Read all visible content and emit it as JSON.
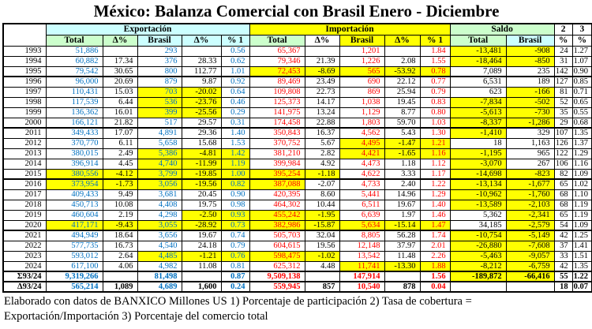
{
  "title": "México: Balanza Comercial con Brasil Enero - Diciembre",
  "colors": {
    "export_text": "#0070C0",
    "import_text": "#FF0000",
    "saldo_text": "#000000",
    "highlight": "#FFFF00",
    "header_export_bg": "#CCFFFF",
    "header_import_bg": "#FFFF00",
    "header_saldo_bg": "#CCFFCC"
  },
  "table": {
    "corner_label": "",
    "groups": [
      {
        "label": "Exportación",
        "span": 5,
        "bg": "cyan"
      },
      {
        "label": "Importación",
        "span": 5,
        "bg": "yellow"
      },
      {
        "label": "Saldo",
        "span": 2,
        "bg": "green"
      },
      {
        "label": "2",
        "span": 1,
        "bg": "white"
      },
      {
        "label": "3",
        "span": 1,
        "bg": "white"
      }
    ],
    "columns": [
      {
        "label": "Total",
        "bg": "green"
      },
      {
        "label": "Δ%",
        "bg": "green"
      },
      {
        "label": "Brasil",
        "bg": "cyan"
      },
      {
        "label": "Δ%",
        "bg": "cyan"
      },
      {
        "label": "% 1",
        "bg": "cyan"
      },
      {
        "label": "Total",
        "bg": "green"
      },
      {
        "label": "Δ%",
        "bg": "white"
      },
      {
        "label": "Brasil",
        "bg": "yellow"
      },
      {
        "label": "Δ%",
        "bg": "yellow"
      },
      {
        "label": "% 1",
        "bg": "yellow"
      },
      {
        "label": "Total",
        "bg": "green"
      },
      {
        "label": "Brasil",
        "bg": "cyan"
      },
      {
        "label": "%",
        "bg": "white"
      },
      {
        "label": "%",
        "bg": "white"
      }
    ],
    "rows": [
      {
        "year": "1993",
        "cells": [
          "51,886",
          "",
          "293",
          "",
          "0.56",
          "65,367",
          "",
          "1,201",
          "",
          "1.84",
          "-13,481",
          "-908",
          "24",
          "1.27"
        ],
        "hl": [
          10,
          11
        ]
      },
      {
        "year": "1994",
        "cells": [
          "60,882",
          "17.34",
          "376",
          "28.33",
          "0.62",
          "79,346",
          "21.39",
          "1,226",
          "2.08",
          "1.55",
          "-18,464",
          "-850",
          "31",
          "1.07"
        ],
        "hl": [
          10,
          11
        ]
      },
      {
        "year": "1995",
        "cells": [
          "79,542",
          "30.65",
          "800",
          "112.77",
          "1.01",
          "72,453",
          "-8.69",
          "565",
          "-53.92",
          "0.78",
          "7,089",
          "235",
          "142",
          "0.90"
        ],
        "hl": [
          5,
          6,
          7,
          8,
          9
        ]
      },
      {
        "year": "1996",
        "cells": [
          "96,000",
          "20.69",
          "879",
          "9.87",
          "0.92",
          "89,469",
          "23.49",
          "690",
          "22.12",
          "0.77",
          "6,531",
          "189",
          "127",
          "0.85"
        ],
        "hl": [],
        "sep": true
      },
      {
        "year": "1997",
        "cells": [
          "110,431",
          "15.03",
          "703",
          "-20.02",
          "0.64",
          "109,808",
          "22.73",
          "869",
          "25.94",
          "0.79",
          "623",
          "-166",
          "81",
          "0.71"
        ],
        "hl": [
          2,
          3,
          11
        ]
      },
      {
        "year": "1998",
        "cells": [
          "117,539",
          "6.44",
          "536",
          "-23.76",
          "0.46",
          "125,373",
          "14.17",
          "1,038",
          "19.45",
          "0.83",
          "-7,834",
          "-502",
          "52",
          "0.65"
        ],
        "hl": [
          2,
          3,
          10,
          11
        ]
      },
      {
        "year": "1999",
        "cells": [
          "136,362",
          "16.01",
          "399",
          "-25.56",
          "0.29",
          "141,975",
          "13.24",
          "1,129",
          "8.77",
          "0.80",
          "-5,613",
          "-730",
          "35",
          "0.55"
        ],
        "hl": [
          2,
          3,
          10,
          11
        ]
      },
      {
        "year": "2000",
        "cells": [
          "166,121",
          "21.82",
          "517",
          "29.57",
          "0.31",
          "174,458",
          "22.88",
          "1,803",
          "59.70",
          "1.03",
          "-8,337",
          "-1,286",
          "29",
          "0.68"
        ],
        "hl": [
          10,
          11
        ]
      },
      {
        "year": "2011",
        "cells": [
          "349,433",
          "17.07",
          "4,891",
          "29.36",
          "1.40",
          "350,843",
          "16.37",
          "4,562",
          "5.43",
          "1.30",
          "-1,410",
          "329",
          "107",
          "1.35"
        ],
        "hl": [
          10
        ],
        "sep": true
      },
      {
        "year": "2012",
        "cells": [
          "370,770",
          "6.11",
          "5,658",
          "15.68",
          "1.53",
          "370,752",
          "5.67",
          "4,495",
          "-1.47",
          "1.21",
          "18",
          "1,163",
          "126",
          "1.37"
        ],
        "hl": [
          7,
          8,
          9
        ]
      },
      {
        "year": "2013",
        "cells": [
          "380,015",
          "2.49",
          "5,386",
          "-4.81",
          "1.42",
          "381,210",
          "2.82",
          "4,421",
          "-1.65",
          "1.16",
          "-1,195",
          "965",
          "122",
          "1.29"
        ],
        "hl": [
          2,
          3,
          4,
          7,
          8,
          9,
          10
        ]
      },
      {
        "year": "2014",
        "cells": [
          "396,914",
          "4.45",
          "4,740",
          "-11.99",
          "1.19",
          "399,984",
          "4.92",
          "4,473",
          "1.18",
          "1.12",
          "-3,070",
          "267",
          "106",
          "1.16"
        ],
        "hl": [
          2,
          3,
          4,
          10
        ]
      },
      {
        "year": "2015",
        "cells": [
          "380,556",
          "-4.12",
          "3,799",
          "-19.85",
          "1.00",
          "395,254",
          "-1.18",
          "4,622",
          "3.33",
          "1.17",
          "-14,698",
          "-823",
          "82",
          "1.09"
        ],
        "hl": [
          0,
          1,
          2,
          3,
          4,
          5,
          6,
          10,
          11
        ]
      },
      {
        "year": "2016",
        "cells": [
          "373,954",
          "-1.73",
          "3,056",
          "-19.56",
          "0.82",
          "387,088",
          "-2.07",
          "4,733",
          "2.40",
          "1.22",
          "-13,134",
          "-1,677",
          "65",
          "1.02"
        ],
        "hl": [
          0,
          1,
          2,
          3,
          4,
          5,
          10,
          11
        ],
        "sep": true
      },
      {
        "year": "2017",
        "cells": [
          "409,433",
          "9.49",
          "3,681",
          "20.45",
          "0.90",
          "420,395",
          "8.60",
          "5,441",
          "14.96",
          "1.29",
          "-10,962",
          "-1,760",
          "68",
          "1.10"
        ],
        "hl": [
          10,
          11
        ]
      },
      {
        "year": "2018",
        "cells": [
          "450,713",
          "10.08",
          "4,408",
          "19.75",
          "0.98",
          "464,302",
          "10.44",
          "6,511",
          "19.67",
          "1.40",
          "-13,589",
          "-2,103",
          "68",
          "1.19"
        ],
        "hl": [
          10,
          11
        ]
      },
      {
        "year": "2019",
        "cells": [
          "460,604",
          "2.19",
          "4,298",
          "-2.50",
          "0.93",
          "455,242",
          "-1.95",
          "6,639",
          "1.97",
          "1.46",
          "5,362",
          "-2,341",
          "65",
          "1.19"
        ],
        "hl": [
          3,
          4,
          5,
          6,
          11
        ]
      },
      {
        "year": "2020",
        "cells": [
          "417,171",
          "-9.43",
          "3,055",
          "-28.92",
          "0.73",
          "382,986",
          "-15.87",
          "5,634",
          "-15.14",
          "1.47",
          "34,185",
          "-2,579",
          "54",
          "1.09"
        ],
        "hl": [
          0,
          1,
          2,
          3,
          4,
          5,
          6,
          7,
          8,
          9,
          11
        ]
      },
      {
        "year": "2021",
        "cells": [
          "494,949",
          "18.64",
          "3,656",
          "19.67",
          "0.74",
          "505,703",
          "32.04",
          "8,805",
          "56.28",
          "1.74",
          "-10,754",
          "-5,149",
          "42",
          "1.25"
        ],
        "hl": [
          10,
          11
        ],
        "sep": true
      },
      {
        "year": "2022",
        "cells": [
          "577,735",
          "16.73",
          "4,540",
          "24.18",
          "0.79",
          "604,615",
          "19.56",
          "12,148",
          "37.97",
          "2.01",
          "-26,880",
          "-7,608",
          "37",
          "1.41"
        ],
        "hl": [
          10,
          11
        ]
      },
      {
        "year": "2023",
        "cells": [
          "593,012",
          "2.64",
          "4,485",
          "-1.21",
          "0.76",
          "598,475",
          "-1.02",
          "13,542",
          "11.48",
          "2.26",
          "-5,463",
          "-9,057",
          "33",
          "1.51"
        ],
        "hl": [
          2,
          3,
          4,
          5,
          6,
          10,
          11
        ]
      },
      {
        "year": "2024",
        "cells": [
          "617,100",
          "4.06",
          "4,982",
          "11.08",
          "0.81",
          "625,312",
          "4.48",
          "11,741",
          "-13.30",
          "1.88",
          "-8,212",
          "-6,759",
          "42",
          "1.35"
        ],
        "hl": [
          7,
          8,
          9,
          10,
          11
        ]
      },
      {
        "year": "Σ93/24",
        "cells": [
          "9,319,266",
          "",
          "81,498",
          "",
          "0.87",
          "9,509,138",
          "",
          "147,914",
          "",
          "1.56",
          "-189,872",
          "-66,416",
          "55",
          "1.22"
        ],
        "hl": [
          10,
          11
        ],
        "sep": true,
        "bold": true
      },
      {
        "year": "Δ93/24",
        "cells": [
          "565,214",
          "1,089",
          "4,689",
          "1,600",
          "0.24",
          "559,945",
          "857",
          "10,540",
          "878",
          "0.04",
          "",
          "",
          "18",
          "0.07"
        ],
        "hl": [],
        "sep": true,
        "bold": true
      }
    ]
  },
  "footer_line1": "Elaborado con datos de BANXICO   Millones US 1) Porcentaje de participación   2) Tasa de cobertura =",
  "footer_line2": "Exportación/Importación 3) Porcentaje del comercio total"
}
